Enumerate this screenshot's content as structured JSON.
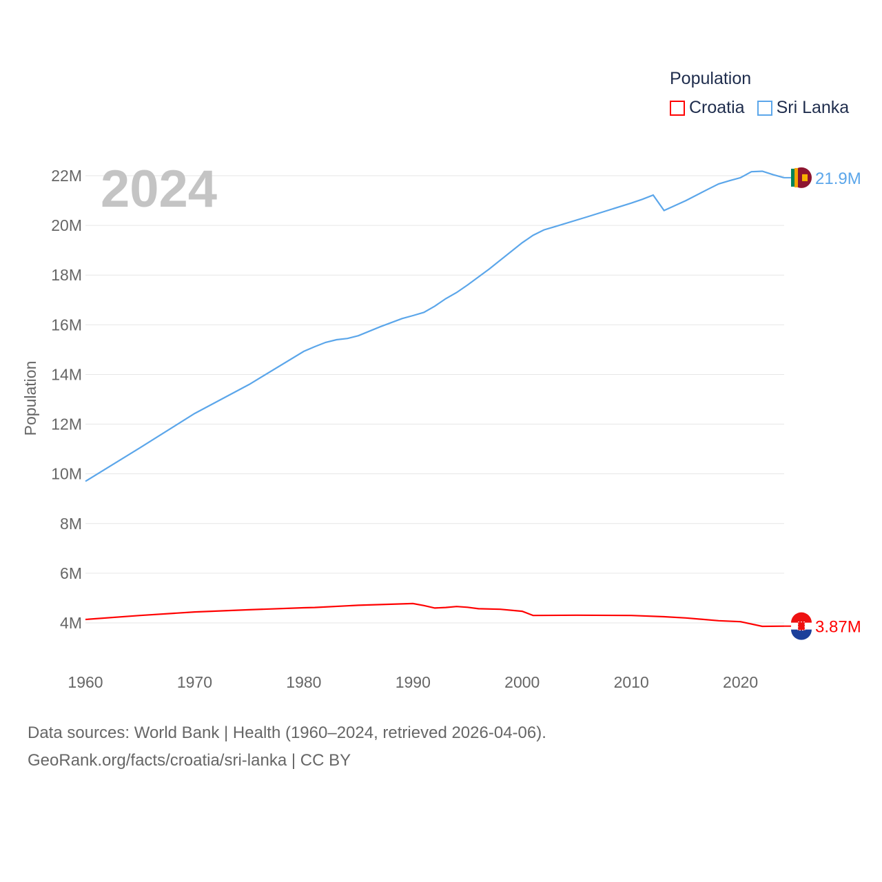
{
  "chart_data": {
    "type": "line",
    "title": "Population",
    "year_label": "2024",
    "xlabel": "",
    "ylabel": "Population",
    "xlim": [
      1960,
      2024
    ],
    "ylim": [
      4,
      22
    ],
    "x_ticks": [
      "1960",
      "1970",
      "1980",
      "1990",
      "2000",
      "2010",
      "2020"
    ],
    "y_ticks": [
      "4M",
      "6M",
      "8M",
      "10M",
      "12M",
      "14M",
      "16M",
      "18M",
      "20M",
      "22M"
    ],
    "grid": true,
    "legend_placement": "top-right",
    "series": [
      {
        "name": "Croatia",
        "color": "#ff0000",
        "end_label": "3.87M",
        "points": [
          [
            1960,
            4.14
          ],
          [
            1965,
            4.3
          ],
          [
            1970,
            4.44
          ],
          [
            1975,
            4.53
          ],
          [
            1980,
            4.61
          ],
          [
            1981,
            4.62
          ],
          [
            1985,
            4.71
          ],
          [
            1990,
            4.78
          ],
          [
            1991,
            4.7
          ],
          [
            1992,
            4.6
          ],
          [
            1993,
            4.62
          ],
          [
            1994,
            4.66
          ],
          [
            1995,
            4.63
          ],
          [
            1996,
            4.57
          ],
          [
            1998,
            4.55
          ],
          [
            2000,
            4.47
          ],
          [
            2001,
            4.3
          ],
          [
            2005,
            4.31
          ],
          [
            2010,
            4.3
          ],
          [
            2013,
            4.25
          ],
          [
            2015,
            4.2
          ],
          [
            2018,
            4.09
          ],
          [
            2020,
            4.05
          ],
          [
            2022,
            3.86
          ],
          [
            2024,
            3.87
          ]
        ]
      },
      {
        "name": "Sri Lanka",
        "color": "#5ba6ea",
        "end_label": "21.9M",
        "points": [
          [
            1960,
            9.7
          ],
          [
            1965,
            11.05
          ],
          [
            1970,
            12.43
          ],
          [
            1975,
            13.6
          ],
          [
            1980,
            14.93
          ],
          [
            1981,
            15.12
          ],
          [
            1982,
            15.29
          ],
          [
            1983,
            15.4
          ],
          [
            1984,
            15.45
          ],
          [
            1985,
            15.56
          ],
          [
            1987,
            15.92
          ],
          [
            1989,
            16.25
          ],
          [
            1990,
            16.37
          ],
          [
            1991,
            16.5
          ],
          [
            1992,
            16.75
          ],
          [
            1993,
            17.05
          ],
          [
            1994,
            17.3
          ],
          [
            1995,
            17.6
          ],
          [
            1997,
            18.25
          ],
          [
            2000,
            19.3
          ],
          [
            2001,
            19.6
          ],
          [
            2002,
            19.82
          ],
          [
            2003,
            19.95
          ],
          [
            2006,
            20.35
          ],
          [
            2010,
            20.9
          ],
          [
            2011,
            21.05
          ],
          [
            2012,
            21.22
          ],
          [
            2013,
            20.6
          ],
          [
            2015,
            21.0
          ],
          [
            2017,
            21.45
          ],
          [
            2018,
            21.67
          ],
          [
            2019,
            21.8
          ],
          [
            2020,
            21.92
          ],
          [
            2021,
            22.16
          ],
          [
            2022,
            22.18
          ],
          [
            2023,
            22.04
          ],
          [
            2024,
            21.92
          ]
        ]
      }
    ]
  },
  "legend": {
    "title": "Population",
    "items": [
      "Croatia",
      "Sri Lanka"
    ]
  },
  "footer": {
    "line1": "Data sources: World Bank | Health (1960–2024, retrieved 2026-04-06).",
    "line2": "GeoRank.org/facts/croatia/sri-lanka | CC BY"
  }
}
